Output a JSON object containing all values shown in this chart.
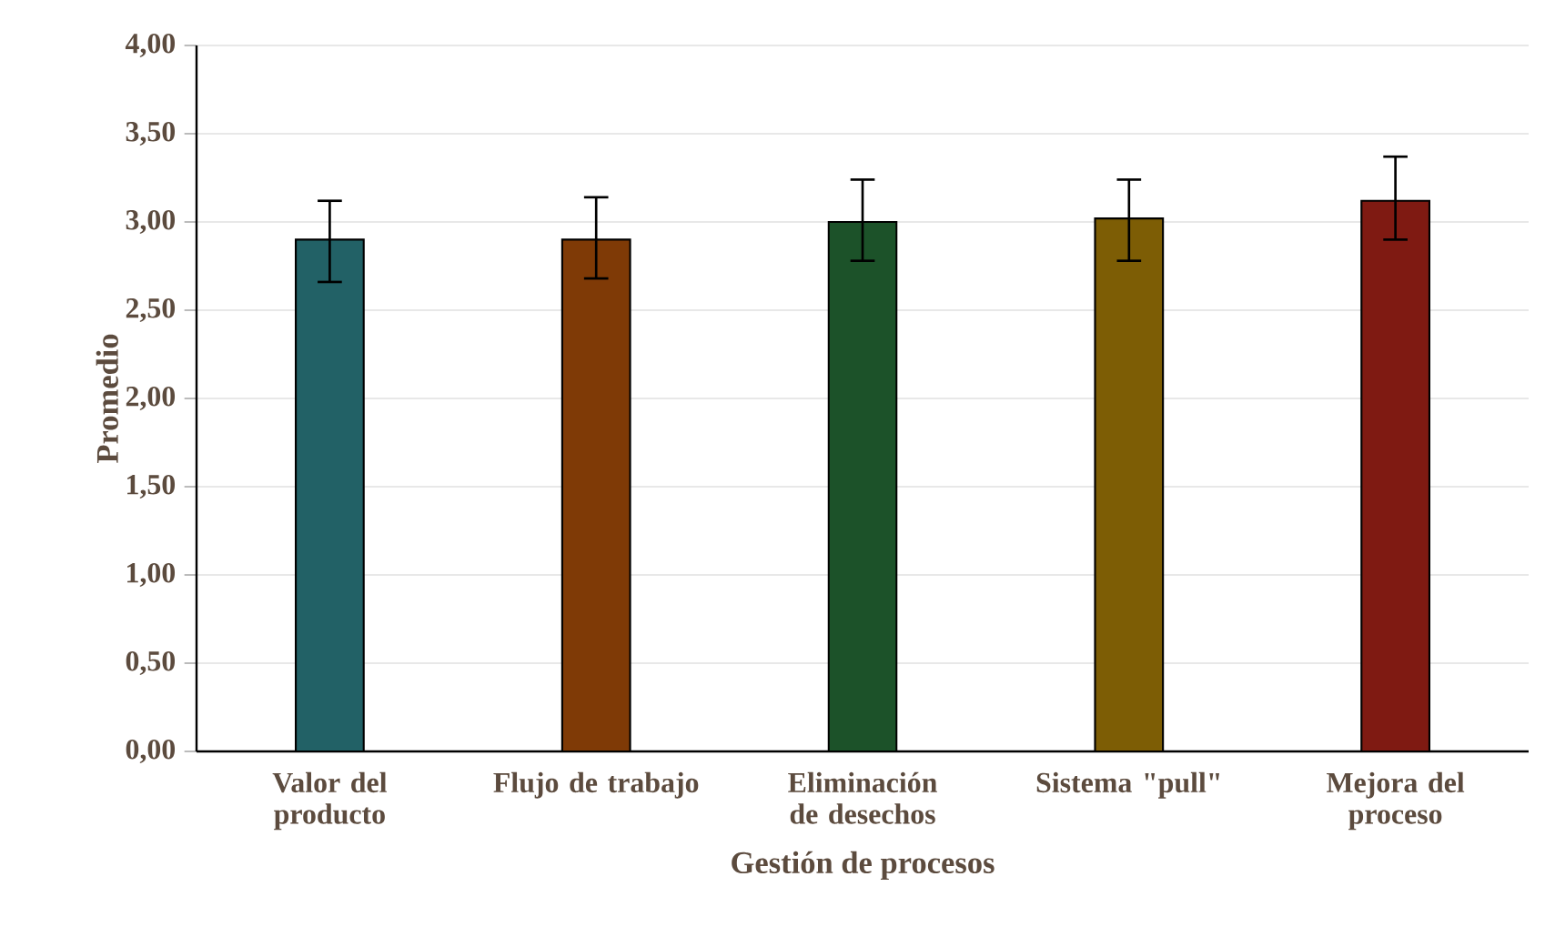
{
  "chart_data": {
    "type": "bar",
    "xlabel": "Gestión de procesos",
    "ylabel": "Promedio",
    "categories": [
      "Valor del producto",
      "Flujo de trabajo",
      "Eliminación de desechos",
      "Sistema \"pull\"",
      "Mejora del proceso"
    ],
    "values": [
      2.9,
      2.9,
      3.0,
      3.02,
      3.12
    ],
    "errors": [
      [
        2.66,
        3.12
      ],
      [
        2.68,
        3.14
      ],
      [
        2.78,
        3.24
      ],
      [
        2.78,
        3.24
      ],
      [
        2.9,
        3.37
      ]
    ],
    "colors": [
      "#226166",
      "#7f3a06",
      "#1c5229",
      "#7d5d05",
      "#7f1a12"
    ],
    "ylim": [
      0,
      4
    ],
    "yticks": [
      {
        "value": 0,
        "label": "0,00"
      },
      {
        "value": 0.5,
        "label": "0,50"
      },
      {
        "value": 1,
        "label": "1,00"
      },
      {
        "value": 1.5,
        "label": "1,50"
      },
      {
        "value": 2,
        "label": "2,00"
      },
      {
        "value": 2.5,
        "label": "2,50"
      },
      {
        "value": 3,
        "label": "3,00"
      },
      {
        "value": 3.5,
        "label": "3,50"
      },
      {
        "value": 4,
        "label": "4,00"
      }
    ],
    "grid": "y"
  }
}
